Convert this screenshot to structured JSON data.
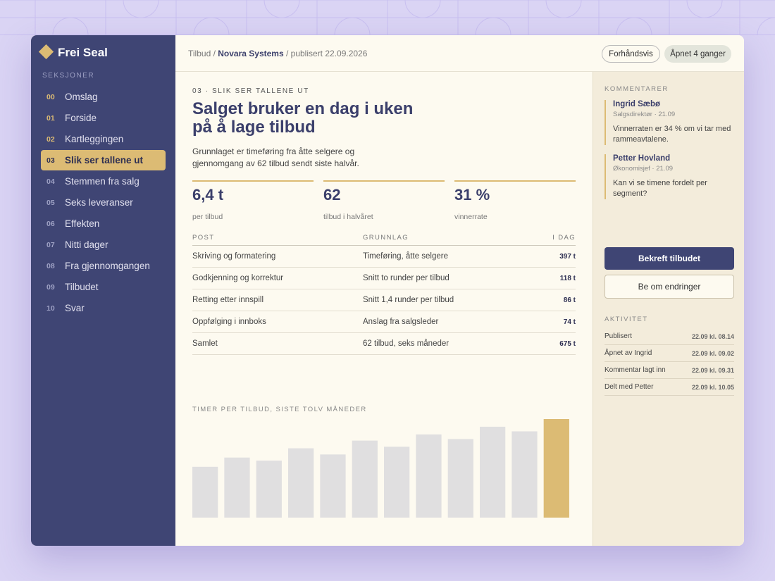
{
  "brand": "Frei Seal",
  "sidebar": {
    "heading": "SEKSJONER",
    "active": 3,
    "items": [
      {
        "num": "00",
        "label": "Omslag"
      },
      {
        "num": "01",
        "label": "Forside"
      },
      {
        "num": "02",
        "label": "Kartleggingen"
      },
      {
        "num": "03",
        "label": "Slik ser tallene ut"
      },
      {
        "num": "04",
        "label": "Stemmen fra salg"
      },
      {
        "num": "05",
        "label": "Seks leveranser"
      },
      {
        "num": "06",
        "label": "Effekten"
      },
      {
        "num": "07",
        "label": "Nitti dager"
      },
      {
        "num": "08",
        "label": "Fra gjennomgangen"
      },
      {
        "num": "09",
        "label": "Tilbudet"
      },
      {
        "num": "10",
        "label": "Svar"
      }
    ]
  },
  "breadcrumb": {
    "root": "Tilbud /",
    "client": "Novara Systems",
    "status": "/ publisert 22.09.2026"
  },
  "buttons": {
    "preview": "Forhåndsvis",
    "opened": "Åpnet 4 ganger"
  },
  "section": {
    "eyebrow": "03 · SLIK SER TALLENE UT",
    "title": "Salget bruker en dag i uken på å lage tilbud",
    "lead": "Grunnlaget er timeføring fra åtte selgere og gjennomgang av 62 tilbud sendt siste halvår."
  },
  "stats": [
    {
      "value": "6,4 t",
      "label": "per tilbud"
    },
    {
      "value": "62",
      "label": "tilbud i halvåret"
    },
    {
      "value": "31 %",
      "label": "vinnerrate"
    }
  ],
  "table": {
    "headers": [
      "POST",
      "GRUNNLAG",
      "I DAG"
    ],
    "rows": [
      [
        "Skriving og formatering",
        "Timeføring, åtte selgere",
        "397 t"
      ],
      [
        "Godkjenning og korrektur",
        "Snitt to runder per tilbud",
        "118 t"
      ],
      [
        "Retting etter innspill",
        "Snitt 1,4 runder per tilbud",
        "86 t"
      ],
      [
        "Oppfølging i innboks",
        "Anslag fra salgsleder",
        "74 t"
      ],
      [
        "Samlet",
        "62 tilbud, seks måneder",
        "675 t"
      ]
    ]
  },
  "chart_data": {
    "type": "bar",
    "title": "TIMER PER TILBUD, SISTE TOLV MÅNEDER",
    "values": [
      3.3,
      3.9,
      3.7,
      4.5,
      4.1,
      5.0,
      4.6,
      5.4,
      5.1,
      5.9,
      5.6,
      6.4
    ],
    "color": "#e0dfe0",
    "highlight": {
      "index": 11,
      "color": "#dcbb74"
    }
  },
  "comments": {
    "heading": "KOMMENTARER",
    "items": [
      {
        "author": "Ingrid Sæbø",
        "meta": "Salgsdirektør · 21.09",
        "text": "Vinnerraten er 34 % om vi tar med rammeavtalene."
      },
      {
        "author": "Petter Hovland",
        "meta": "Økonomisjef · 21.09",
        "text": "Kan vi se timene fordelt per segment?"
      }
    ]
  },
  "actions": {
    "confirm": "Bekreft tilbudet",
    "request": "Be om endringer"
  },
  "activity": {
    "heading": "AKTIVITET",
    "items": [
      {
        "event": "Publisert",
        "time": "22.09 kl. 08.14"
      },
      {
        "event": "Åpnet av Ingrid",
        "time": "22.09 kl. 09.02"
      },
      {
        "event": "Kommentar lagt inn",
        "time": "22.09 kl. 09.31"
      },
      {
        "event": "Delt med Petter",
        "time": "22.09 kl. 10.05"
      }
    ]
  }
}
